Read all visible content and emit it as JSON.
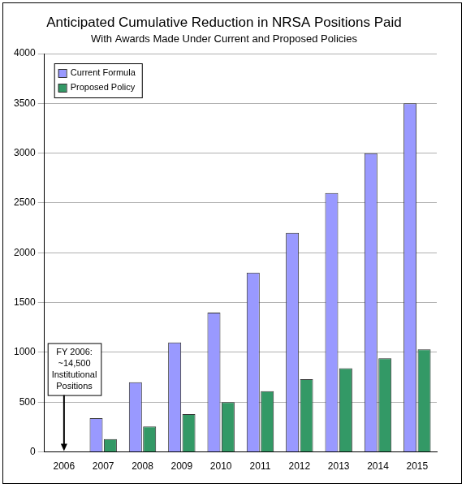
{
  "chart_data": {
    "type": "bar",
    "title": "Anticipated Cumulative Reduction in NRSA Positions Paid",
    "subtitle": "With Awards Made Under Current and Proposed Policies",
    "categories": [
      "2006",
      "2007",
      "2008",
      "2009",
      "2010",
      "2011",
      "2012",
      "2013",
      "2014",
      "2015"
    ],
    "series": [
      {
        "name": "Current Formula",
        "color": "#9999ff",
        "values": [
          0,
          340,
          700,
          1100,
          1400,
          1800,
          2200,
          2600,
          3000,
          3500
        ]
      },
      {
        "name": "Proposed Policy",
        "color": "#339966",
        "values": [
          0,
          130,
          255,
          380,
          500,
          610,
          730,
          840,
          940,
          1030
        ]
      }
    ],
    "ylim": [
      0,
      4000
    ],
    "yticks": [
      0,
      500,
      1000,
      1500,
      2000,
      2500,
      3000,
      3500,
      4000
    ],
    "grid": true,
    "legend": "upper left",
    "annotation": {
      "lines": [
        "FY 2006:",
        "~14,500",
        "Institutional",
        "Positions"
      ],
      "x": "2006"
    }
  }
}
